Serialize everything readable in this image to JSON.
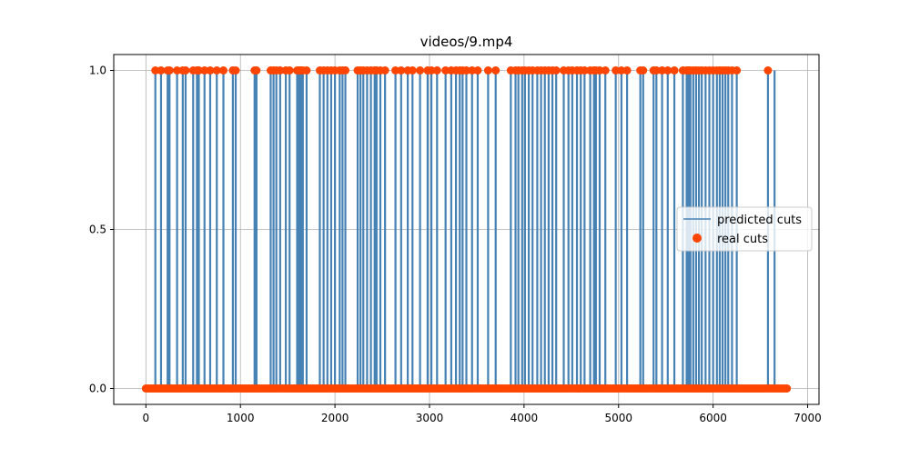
{
  "chart_data": {
    "type": "line",
    "title": "videos/9.mp4",
    "xlabel": "",
    "ylabel": "",
    "xlim": [
      -340,
      7120
    ],
    "ylim": [
      -0.05,
      1.05
    ],
    "x_ticks": [
      0,
      1000,
      2000,
      3000,
      4000,
      5000,
      6000,
      7000
    ],
    "x_tick_labels": [
      "0",
      "1000",
      "2000",
      "3000",
      "4000",
      "5000",
      "6000",
      "7000"
    ],
    "y_ticks": [
      0.0,
      0.5,
      1.0
    ],
    "y_tick_labels": [
      "0.0",
      "0.5",
      "1.0"
    ],
    "grid": true,
    "legend_position": "center-right",
    "x_max": 6790,
    "series": [
      {
        "name": "predicted cuts",
        "kind": "step-line",
        "color": "#4682b4",
        "cut_frames": [
          100,
          160,
          230,
          250,
          330,
          390,
          420,
          500,
          540,
          560,
          620,
          680,
          750,
          820,
          920,
          950,
          1150,
          1170,
          1320,
          1350,
          1380,
          1420,
          1480,
          1520,
          1600,
          1620,
          1640,
          1660,
          1700,
          1840,
          1880,
          1920,
          1960,
          2000,
          2050,
          2080,
          2110,
          2240,
          2270,
          2300,
          2340,
          2380,
          2420,
          2440,
          2480,
          2530,
          2640,
          2700,
          2770,
          2820,
          2900,
          2980,
          3020,
          3080,
          3170,
          3230,
          3280,
          3320,
          3350,
          3390,
          3450,
          3510,
          3620,
          3700,
          3860,
          3910,
          3940,
          3980,
          4010,
          4050,
          4090,
          4140,
          4180,
          4220,
          4260,
          4300,
          4340,
          4420,
          4470,
          4510,
          4560,
          4600,
          4640,
          4700,
          4740,
          4760,
          4800,
          4860,
          4970,
          5030,
          5090,
          5230,
          5260,
          5370,
          5400,
          5460,
          5520,
          5590,
          5680,
          5720,
          5740,
          5760,
          5790,
          5820,
          5850,
          5880,
          5920,
          5960,
          6000,
          6040,
          6070,
          6100,
          6130,
          6160,
          6200,
          6250,
          6580,
          6650
        ]
      },
      {
        "name": "real cuts",
        "kind": "scatter",
        "color": "#ff4500",
        "points_at_one": [
          100,
          160,
          230,
          250,
          330,
          390,
          420,
          500,
          540,
          560,
          620,
          680,
          750,
          820,
          920,
          950,
          1150,
          1170,
          1320,
          1350,
          1380,
          1420,
          1480,
          1520,
          1600,
          1620,
          1640,
          1660,
          1700,
          1840,
          1880,
          1920,
          1960,
          2000,
          2050,
          2080,
          2110,
          2240,
          2270,
          2300,
          2340,
          2380,
          2420,
          2440,
          2480,
          2530,
          2640,
          2700,
          2770,
          2820,
          2900,
          2980,
          3020,
          3080,
          3170,
          3230,
          3280,
          3320,
          3350,
          3390,
          3450,
          3510,
          3620,
          3700,
          3860,
          3910,
          3940,
          3980,
          4010,
          4050,
          4090,
          4140,
          4180,
          4220,
          4260,
          4300,
          4340,
          4420,
          4470,
          4510,
          4560,
          4600,
          4640,
          4700,
          4740,
          4760,
          4800,
          4860,
          4970,
          5030,
          5090,
          5230,
          5260,
          5370,
          5400,
          5460,
          5520,
          5590,
          5680,
          5720,
          5740,
          5760,
          5790,
          5820,
          5850,
          5880,
          5920,
          5960,
          6000,
          6040,
          6070,
          6100,
          6130,
          6160,
          6200,
          6250,
          6580
        ],
        "points_at_zero_step": 20
      }
    ]
  }
}
